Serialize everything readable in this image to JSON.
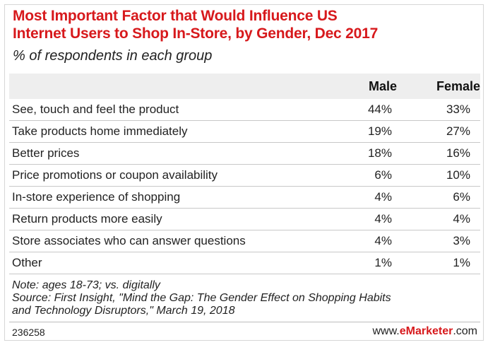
{
  "chart_data": {
    "type": "table",
    "title_line1": "Most Important Factor that Would Influence US",
    "title_line2": "Internet Users to Shop In-Store, by Gender, Dec 2017",
    "subtitle": "% of respondents in each group",
    "columns": [
      "Male",
      "Female"
    ],
    "rows": [
      {
        "label": "See, touch and feel the product",
        "male": "44%",
        "female": "33%"
      },
      {
        "label": "Take products home immediately",
        "male": "19%",
        "female": "27%"
      },
      {
        "label": "Better prices",
        "male": "18%",
        "female": "16%"
      },
      {
        "label": "Price promotions or coupon availability",
        "male": "6%",
        "female": "10%"
      },
      {
        "label": "In-store experience of shopping",
        "male": "4%",
        "female": "6%"
      },
      {
        "label": "Return products more easily",
        "male": "4%",
        "female": "4%"
      },
      {
        "label": "Store associates who can answer questions",
        "male": "4%",
        "female": "3%"
      },
      {
        "label": "Other",
        "male": "1%",
        "female": "1%"
      }
    ],
    "series": [
      {
        "name": "Male",
        "values": [
          44,
          19,
          18,
          6,
          4,
          4,
          4,
          1
        ]
      },
      {
        "name": "Female",
        "values": [
          33,
          27,
          16,
          10,
          6,
          4,
          3,
          1
        ]
      }
    ]
  },
  "notes": {
    "line1": "Note: ages 18-73; vs. digitally",
    "line2": "Source: First Insight, \"Mind the Gap: The Gender Effect on Shopping Habits",
    "line3": "and Technology Disruptors,\" March 19, 2018"
  },
  "footer": {
    "chart_id": "236258",
    "brand_prefix": "www.",
    "brand_mark": "eMarketer",
    "brand_suffix": ".com"
  },
  "colors": {
    "title": "#d7191c",
    "header_bg": "#eeeeee",
    "rule": "#c8c8c8"
  }
}
